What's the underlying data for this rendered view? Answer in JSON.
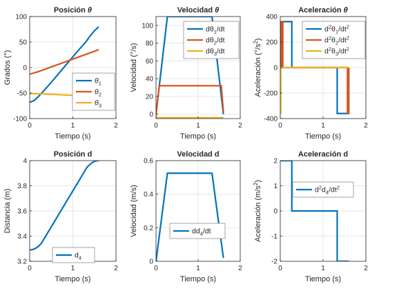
{
  "colors": {
    "blue": "#0072BD",
    "orange": "#D95319",
    "yellow": "#EDB120",
    "grid": "#e6e6e6",
    "axis": "#262626"
  },
  "chart_data": [
    {
      "type": "line",
      "title": "Posición θ",
      "xlabel": "Tiempo (s)",
      "ylabel": "Grados (°)",
      "xlim": [
        0,
        2
      ],
      "ylim": [
        -100,
        100
      ],
      "xticks": [
        0,
        1,
        2
      ],
      "yticks": [
        -100,
        -50,
        0,
        50,
        100
      ],
      "grid": true,
      "legend_position": "bottom-right",
      "series": [
        {
          "name": "θ1",
          "sub": "1",
          "color": "blue",
          "x": [
            0,
            0.1,
            0.2,
            0.3,
            0.5,
            0.8,
            1.1,
            1.3,
            1.4,
            1.5,
            1.6
          ],
          "y": [
            -68,
            -65,
            -57,
            -48,
            -29,
            1,
            31,
            50,
            62,
            72,
            80
          ]
        },
        {
          "name": "θ2",
          "sub": "2",
          "color": "orange",
          "x": [
            0,
            0.2,
            1.6
          ],
          "y": [
            -13,
            -8,
            35
          ]
        },
        {
          "name": "θ3",
          "sub": "3",
          "color": "yellow",
          "x": [
            0,
            0.3,
            1.6
          ],
          "y": [
            -51,
            -51.5,
            -57
          ]
        }
      ]
    },
    {
      "type": "line",
      "title": "Velocidad θ",
      "xlabel": "Tiempo (s)",
      "ylabel": "Velocidad (°/s)",
      "xlim": [
        0,
        2
      ],
      "ylim": [
        -5,
        110
      ],
      "xticks": [
        0,
        1,
        2
      ],
      "yticks": [
        0,
        20,
        40,
        60,
        80,
        100
      ],
      "grid": true,
      "legend_position": "top-right",
      "series": [
        {
          "name": "dθ1/dt",
          "sub": "1",
          "color": "blue",
          "x": [
            0,
            0.27,
            1.33,
            1.6
          ],
          "y": [
            0,
            110,
            110,
            0
          ]
        },
        {
          "name": "dθ2/dt",
          "sub": "2",
          "color": "orange",
          "x": [
            0,
            0.08,
            1.55,
            1.6
          ],
          "y": [
            0,
            32,
            32,
            3
          ]
        },
        {
          "name": "dθ3/dt",
          "sub": "3",
          "color": "yellow",
          "x": [
            0,
            0.02,
            1.6
          ],
          "y": [
            0,
            -4,
            -4
          ]
        }
      ]
    },
    {
      "type": "line",
      "title": "Aceleración θ",
      "xlabel": "Tiempo (s)",
      "ylabel": "Aceleración (°/s²)",
      "xlim": [
        0,
        2
      ],
      "ylim": [
        -400,
        400
      ],
      "xticks": [
        0,
        1,
        2
      ],
      "yticks": [
        -400,
        -200,
        0,
        200,
        400
      ],
      "grid": true,
      "legend_position": "top-right",
      "series": [
        {
          "name": "d²θ1/dt²",
          "sub": "1",
          "color": "blue",
          "x": [
            0,
            0,
            0.27,
            0.27,
            1.33,
            1.33,
            1.6,
            1.6
          ],
          "y": [
            0,
            360,
            360,
            0,
            0,
            -360,
            -360,
            0
          ]
        },
        {
          "name": "d²θ2/dt²",
          "sub": "2",
          "color": "orange",
          "x": [
            0,
            0.03,
            0.03,
            0.06,
            0.06,
            1.57,
            1.57,
            1.6,
            1.6
          ],
          "y": [
            0,
            0,
            360,
            360,
            0,
            0,
            -360,
            -360,
            0
          ]
        },
        {
          "name": "d²θ3/dt²",
          "sub": "3",
          "color": "yellow",
          "x": [
            0,
            0.01,
            0.01,
            1.6
          ],
          "y": [
            -360,
            -360,
            0,
            0
          ]
        }
      ]
    },
    {
      "type": "line",
      "title": "Posición d",
      "xlabel": "Tiempo (s)",
      "ylabel": "Distancia (m)",
      "xlim": [
        0,
        2
      ],
      "ylim": [
        3.2,
        4
      ],
      "xticks": [
        0,
        1,
        2
      ],
      "yticks": [
        3.2,
        3.4,
        3.6,
        3.8,
        4
      ],
      "grid": true,
      "legend_position": "bottom-center",
      "series": [
        {
          "name": "d4",
          "sub": "4",
          "color": "blue",
          "x": [
            0,
            0.05,
            0.1,
            0.15,
            0.2,
            0.27,
            1.33,
            1.4,
            1.45,
            1.5,
            1.55,
            1.6
          ],
          "y": [
            3.29,
            3.292,
            3.297,
            3.306,
            3.318,
            3.342,
            3.948,
            3.971,
            3.984,
            3.994,
            3.999,
            4.0
          ]
        }
      ]
    },
    {
      "type": "line",
      "title": "Velocidad d",
      "xlabel": "Tiempo (s)",
      "ylabel": "Velocidad (m/s)",
      "xlim": [
        0,
        2
      ],
      "ylim": [
        0,
        0.6
      ],
      "xticks": [
        0,
        1,
        2
      ],
      "yticks": [
        0,
        0.2,
        0.4,
        0.6
      ],
      "grid": true,
      "legend_position": "center-right",
      "series": [
        {
          "name": "dd4/dt",
          "sub": "4",
          "color": "blue",
          "x": [
            0,
            0.27,
            1.33,
            1.6
          ],
          "y": [
            0,
            0.525,
            0.525,
            0.02
          ]
        }
      ]
    },
    {
      "type": "line",
      "title": "Aceleración d",
      "xlabel": "Tiempo (s)",
      "ylabel": "Aceleración (m/s²)",
      "xlim": [
        0,
        2
      ],
      "ylim": [
        -2,
        2
      ],
      "xticks": [
        0,
        1,
        2
      ],
      "yticks": [
        -2,
        -1,
        0,
        1,
        2
      ],
      "grid": true,
      "legend_position": "top-right",
      "series": [
        {
          "name": "d²d4/dt²",
          "sub": "4",
          "color": "blue",
          "x": [
            0,
            0.27,
            0.27,
            1.33,
            1.33,
            1.6
          ],
          "y": [
            2,
            2,
            0,
            0,
            -2,
            -2
          ]
        }
      ]
    }
  ]
}
